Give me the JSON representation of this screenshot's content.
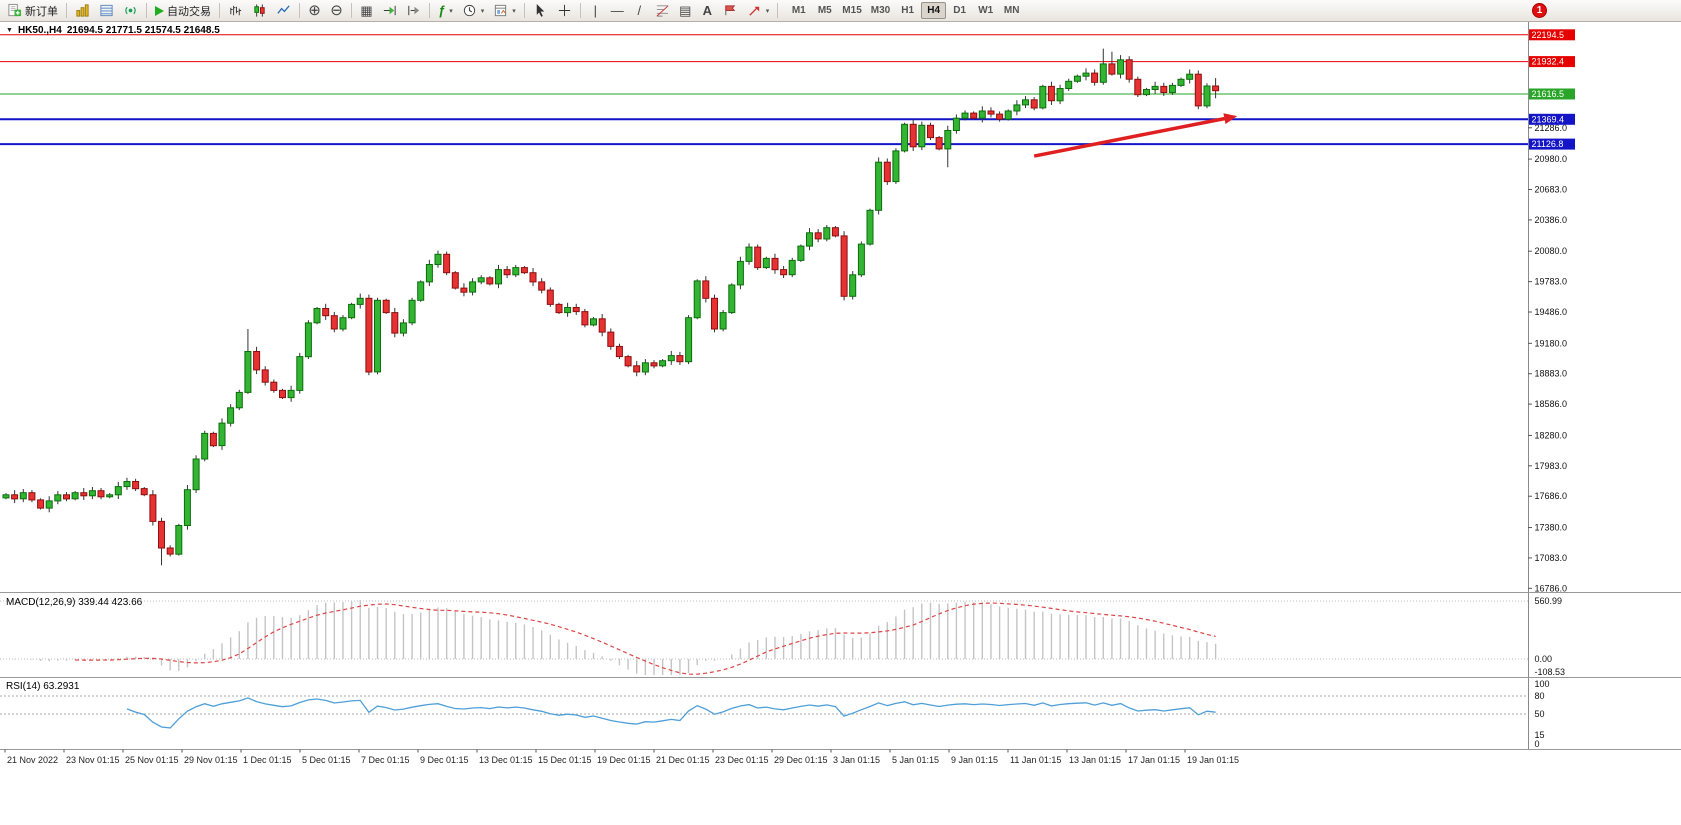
{
  "toolbar": {
    "new_order_label": "新订单",
    "autotrade_label": "自动交易",
    "timeframes": [
      "M1",
      "M5",
      "M15",
      "M30",
      "H1",
      "H4",
      "D1",
      "W1",
      "MN"
    ],
    "active_timeframe": "H4",
    "notification_count": "1",
    "icon_glyphs": {
      "zoom_in": "⊕",
      "zoom_out": "⊖",
      "tile_windows": "▦",
      "channel_grid": "▤",
      "crosshair": "+",
      "vertical_line": "|",
      "horizontal_line": "—",
      "trendline": "/",
      "text_tool": "A",
      "indicators_fx": "ƒ",
      "caret": "▾",
      "title_triangle": "▼"
    }
  },
  "chart": {
    "title": {
      "symbol_period": "HK50.,H4",
      "ohlc": "21694.5 21771.5 21574.5 21648.5"
    },
    "chart_data": {
      "type": "candlestick",
      "symbol": "HK50.",
      "timeframe": "H4",
      "last_ohlc": {
        "open": 21694.5,
        "high": 21771.5,
        "low": 21574.5,
        "close": 21648.5
      },
      "closes": [
        17700,
        17660,
        17720,
        17650,
        17570,
        17640,
        17700,
        17660,
        17720,
        17690,
        17740,
        17680,
        17700,
        17780,
        17830,
        17760,
        17700,
        17440,
        17180,
        17120,
        17400,
        17750,
        18050,
        18300,
        18180,
        18400,
        18550,
        18700,
        19100,
        18920,
        18800,
        18720,
        18650,
        18720,
        19050,
        19380,
        19520,
        19450,
        19320,
        19430,
        19560,
        19620,
        18900,
        19600,
        19480,
        19280,
        19380,
        19600,
        19780,
        19950,
        20050,
        19870,
        19720,
        19680,
        19780,
        19820,
        19760,
        19900,
        19850,
        19920,
        19870,
        19780,
        19700,
        19560,
        19480,
        19530,
        19490,
        19360,
        19420,
        19290,
        19150,
        19050,
        18960,
        18900,
        18990,
        18960,
        19010,
        19060,
        19000,
        19430,
        19790,
        19620,
        19320,
        19480,
        19750,
        19980,
        20120,
        19920,
        20010,
        19900,
        19850,
        19990,
        20130,
        20260,
        20200,
        20310,
        20230,
        19640,
        19850,
        20150,
        20480,
        20950,
        20760,
        21060,
        21320,
        21100,
        21310,
        21190,
        21080,
        21260,
        21380,
        21430,
        21380,
        21450,
        21420,
        21370,
        21450,
        21510,
        21560,
        21480,
        21690,
        21550,
        21670,
        21740,
        21790,
        21820,
        21730,
        21910,
        21810,
        21950,
        21760,
        21610,
        21660,
        21690,
        21630,
        21700,
        21760,
        21810,
        21500,
        21694.5,
        21648.5
      ],
      "wick_overrides": {
        "18": {
          "low": 17010
        },
        "28": {
          "high": 19320
        },
        "109": {
          "low": 20900
        },
        "127": {
          "high": 22060
        },
        "128": {
          "high": 22030
        }
      },
      "levels": [
        {
          "price": 22194.5,
          "label": "22194.5",
          "color": "#e60000",
          "width": 1
        },
        {
          "price": 21932.4,
          "label": "21932.4",
          "color": "#e60000",
          "width": 1
        },
        {
          "price": 21616.5,
          "label": "21616.5",
          "color": "#2aa52a",
          "width": 1
        },
        {
          "price": 21369.4,
          "label": "21369.4",
          "color": "#1515c8",
          "width": 2
        },
        {
          "price": 21126.8,
          "label": "21126.8",
          "color": "#1515c8",
          "width": 2
        }
      ],
      "y_ticks": [
        21286.0,
        20980.0,
        20683.0,
        20386.0,
        20080.0,
        19783.0,
        19486.0,
        19180.0,
        18883.0,
        18586.0,
        18280.0,
        17983.0,
        17686.0,
        17380.0,
        17083.0,
        16786.0
      ],
      "x_labels": [
        "21 Nov 2022",
        "23 Nov 01:15",
        "25 Nov 01:15",
        "29 Nov 01:15",
        "1 Dec 01:15",
        "5 Dec 01:15",
        "7 Dec 01:15",
        "9 Dec 01:15",
        "13 Dec 01:15",
        "15 Dec 01:15",
        "19 Dec 01:15",
        "21 Dec 01:15",
        "23 Dec 01:15",
        "29 Dec 01:15",
        "3 Jan 01:15",
        "5 Jan 01:15",
        "9 Jan 01:15",
        "11 Jan 01:15",
        "13 Jan 01:15",
        "17 Jan 01:15",
        "19 Jan 01:15"
      ],
      "annotation_arrow": {
        "from_bar": 119,
        "from_price": 21010,
        "to_bar": 142.5,
        "to_price": 21400,
        "color": "#e02020"
      },
      "indicators": [
        {
          "name": "MACD",
          "params": "12,26,9",
          "display": "MACD(12,26,9) 339.44 423.66",
          "values": [
            339.44,
            423.66
          ],
          "axis_labels": [
            "560.99",
            "0.00",
            "-108.53"
          ]
        },
        {
          "name": "RSI",
          "params": "14",
          "display": "RSI(14) 63.2931",
          "value": 63.2931,
          "axis_labels": [
            "100",
            "80",
            "50",
            "15",
            "0"
          ]
        }
      ],
      "colors": {
        "up": "#33b533",
        "down": "#e63232",
        "macd_hist": "#c4c4c4",
        "macd_signal": "#dd4444",
        "rsi_line": "#4f9fd8"
      }
    }
  }
}
